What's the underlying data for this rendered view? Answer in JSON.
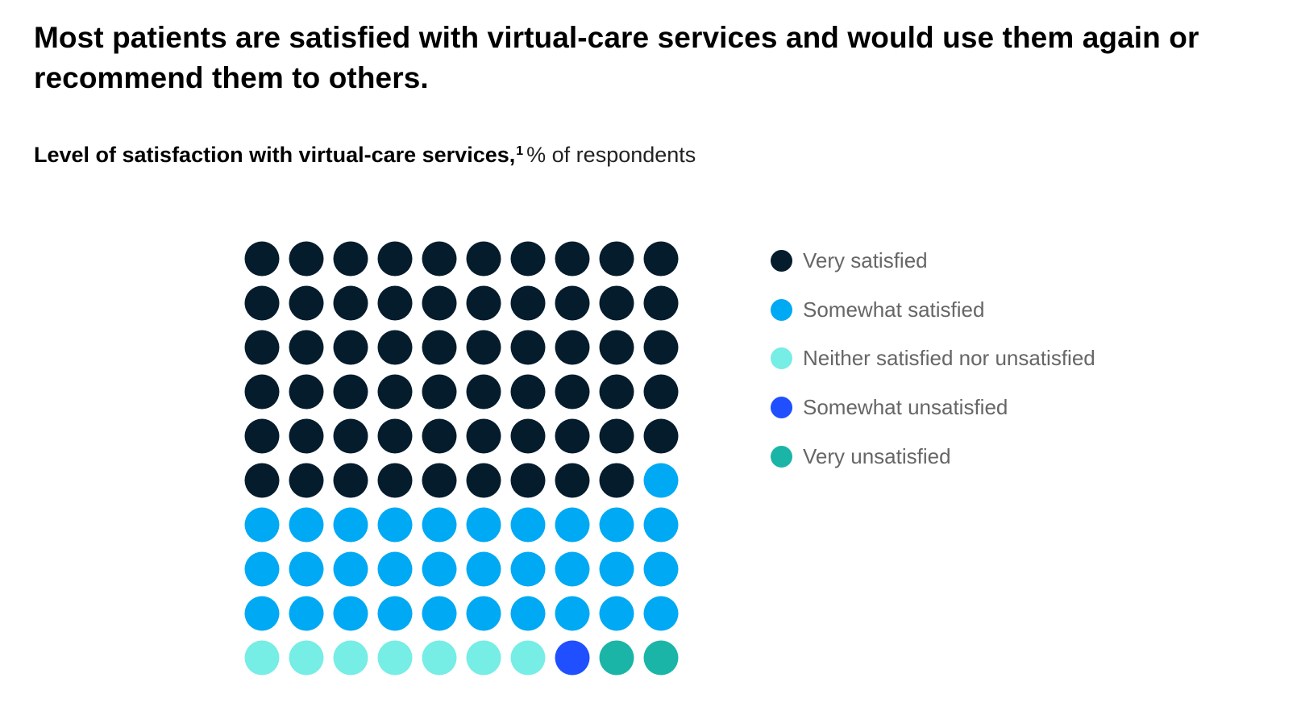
{
  "headline": "Most patients are satisfied with virtual-care services and would use them again or recommend them to others.",
  "subtitle": {
    "bold": "Level of satisfaction with virtual-care services,",
    "footnote": "1",
    "unit": "% of respondents"
  },
  "chart_data": {
    "type": "waffle",
    "title": "Level of satisfaction with virtual-care services",
    "unit": "% of respondents",
    "rows": 10,
    "columns": 10,
    "fill_order": "row-major, top-left to bottom-right",
    "legend_position": "right",
    "categories": [
      "Very satisfied",
      "Somewhat satisfied",
      "Neither satisfied nor unsatisfied",
      "Somewhat unsatisfied",
      "Very unsatisfied"
    ],
    "values": [
      59,
      31,
      7,
      1,
      2
    ],
    "colors": [
      "#051c2c",
      "#00a9f4",
      "#76ede5",
      "#1f4fff",
      "#1bb5a8"
    ]
  }
}
